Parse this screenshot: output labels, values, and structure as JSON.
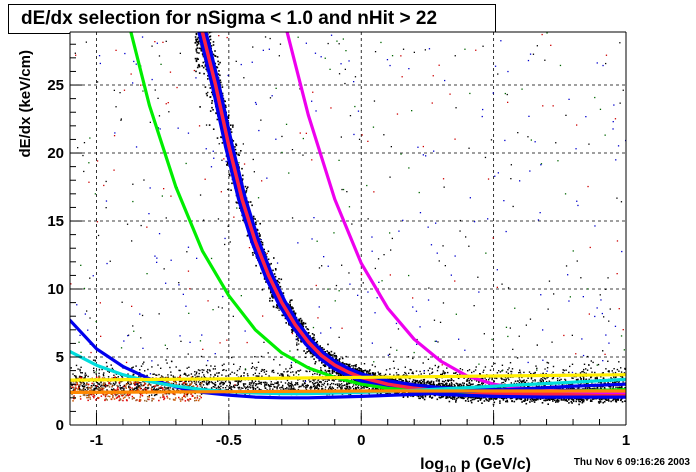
{
  "chart_data": {
    "type": "scatter",
    "title": "dE/dx selection for nSigma < 1.0 and nHit > 22",
    "xlabel_main": "log",
    "xlabel_sub": "10",
    "xlabel_rest": " p (GeV/c)",
    "ylabel": "dE/dx (keV/cm)",
    "xlim": [
      -1.1,
      1.0
    ],
    "ylim": [
      0,
      28.9
    ],
    "x_ticks": [
      -1,
      -0.5,
      0,
      0.5,
      1
    ],
    "x_tick_labels": [
      "-1",
      "-0.5",
      "0",
      "0.5",
      "1"
    ],
    "y_ticks": [
      5,
      10,
      15,
      20,
      25
    ],
    "y_tick_labels": [
      "5",
      "10",
      "15",
      "20",
      "25"
    ],
    "grid": true,
    "series": [
      {
        "color": "#00ee00",
        "x": [
          -0.87,
          -0.8,
          -0.7,
          -0.6,
          -0.5,
          -0.4,
          -0.3,
          -0.2,
          -0.1,
          0.0,
          0.1,
          0.2,
          0.3,
          0.4,
          0.5,
          0.6,
          0.7,
          0.8,
          0.9,
          1.0
        ],
        "y": [
          28.9,
          23.5,
          17.5,
          12.8,
          9.5,
          7.0,
          5.3,
          4.2,
          3.5,
          3.0,
          2.7,
          2.55,
          2.45,
          2.4,
          2.4,
          2.4,
          2.45,
          2.5,
          2.55,
          2.6
        ]
      },
      {
        "color": "#ff2244",
        "x": [
          -0.6,
          -0.55,
          -0.5,
          -0.45,
          -0.4,
          -0.35,
          -0.3,
          -0.25,
          -0.2,
          -0.15,
          -0.1,
          -0.05,
          0.0,
          0.1,
          0.2,
          0.3,
          0.5,
          0.7,
          1.0
        ],
        "y": [
          28.9,
          25.0,
          20.5,
          16.6,
          13.5,
          11.0,
          9.0,
          7.4,
          6.1,
          5.1,
          4.4,
          3.9,
          3.5,
          3.0,
          2.7,
          2.5,
          2.35,
          2.3,
          2.3
        ]
      },
      {
        "color": "#ee00ee",
        "x": [
          -0.28,
          -0.2,
          -0.1,
          0.0,
          0.1,
          0.2,
          0.3,
          0.4,
          0.5,
          0.6,
          0.7,
          0.8,
          0.9,
          1.0
        ],
        "y": [
          28.9,
          22.8,
          16.6,
          11.9,
          8.6,
          6.3,
          4.7,
          3.6,
          3.0,
          2.7,
          2.55,
          2.45,
          2.4,
          2.4
        ]
      },
      {
        "color": "#0000ee",
        "x": [
          -1.1,
          -1.0,
          -0.9,
          -0.8,
          -0.7,
          -0.6,
          -0.5,
          -0.4,
          -0.3,
          -0.2,
          -0.1,
          0.0,
          0.2,
          0.4,
          0.6,
          0.8,
          1.0
        ],
        "y": [
          7.7,
          5.6,
          4.3,
          3.4,
          2.8,
          2.4,
          2.2,
          2.05,
          2.0,
          2.0,
          2.05,
          2.1,
          2.25,
          2.45,
          2.65,
          2.85,
          3.0
        ]
      },
      {
        "color": "#00dddd",
        "x": [
          -1.1,
          -1.0,
          -0.9,
          -0.8,
          -0.7,
          -0.6,
          -0.5,
          -0.4,
          -0.3,
          -0.2,
          -0.1,
          0.0,
          0.2,
          0.4,
          0.6,
          0.8,
          1.0
        ],
        "y": [
          5.4,
          4.4,
          3.7,
          3.2,
          2.85,
          2.6,
          2.45,
          2.35,
          2.3,
          2.3,
          2.35,
          2.4,
          2.55,
          2.75,
          2.95,
          3.15,
          3.35
        ]
      },
      {
        "color": "#ffee00",
        "x": [
          -1.1,
          -0.5,
          0.0,
          0.5,
          1.0
        ],
        "y": [
          3.3,
          3.4,
          3.5,
          3.6,
          3.7
        ]
      },
      {
        "color": "#ff8800",
        "x": [
          -1.1,
          -0.5,
          0.0,
          0.5,
          1.0
        ],
        "y": [
          2.4,
          2.45,
          2.5,
          2.5,
          2.5
        ]
      }
    ]
  },
  "timestamp": "Thu Nov  6 09:16:26 2003"
}
